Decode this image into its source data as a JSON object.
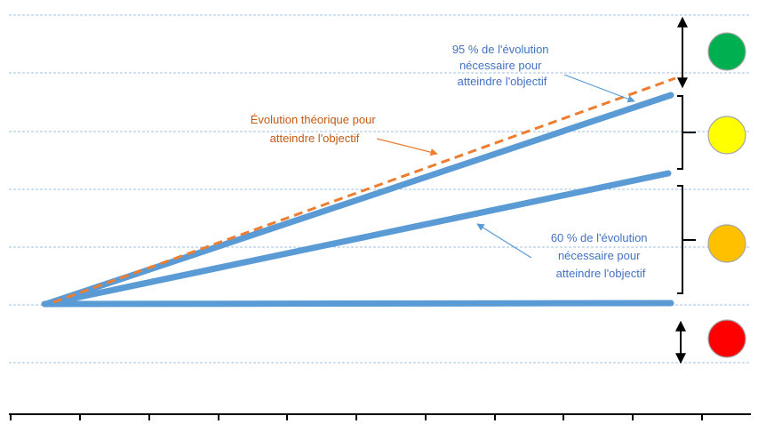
{
  "labels": {
    "theoretical": [
      "Évolution théorique pour",
      "atteindre l'objectif"
    ],
    "pct95": [
      "95 % de l'évolution",
      "nécessaire pour",
      "atteindre l'objectif"
    ],
    "pct60": [
      "60 % de l'évolution",
      "nécessaire pour",
      "atteindre l'objectif"
    ]
  },
  "indicators": [
    {
      "name": "green",
      "color": "#00b050"
    },
    {
      "name": "yellow",
      "color": "#ffff00"
    },
    {
      "name": "orange",
      "color": "#ffc000"
    },
    {
      "name": "red",
      "color": "#ff0000"
    }
  ],
  "colors": {
    "trajectory": "#5b9bd5",
    "theoretical": "#ed7d31",
    "gridline": "#9dc3e6",
    "axis": "#000000",
    "label_blue": "#4472c4",
    "label_orange": "#c55a11"
  }
}
